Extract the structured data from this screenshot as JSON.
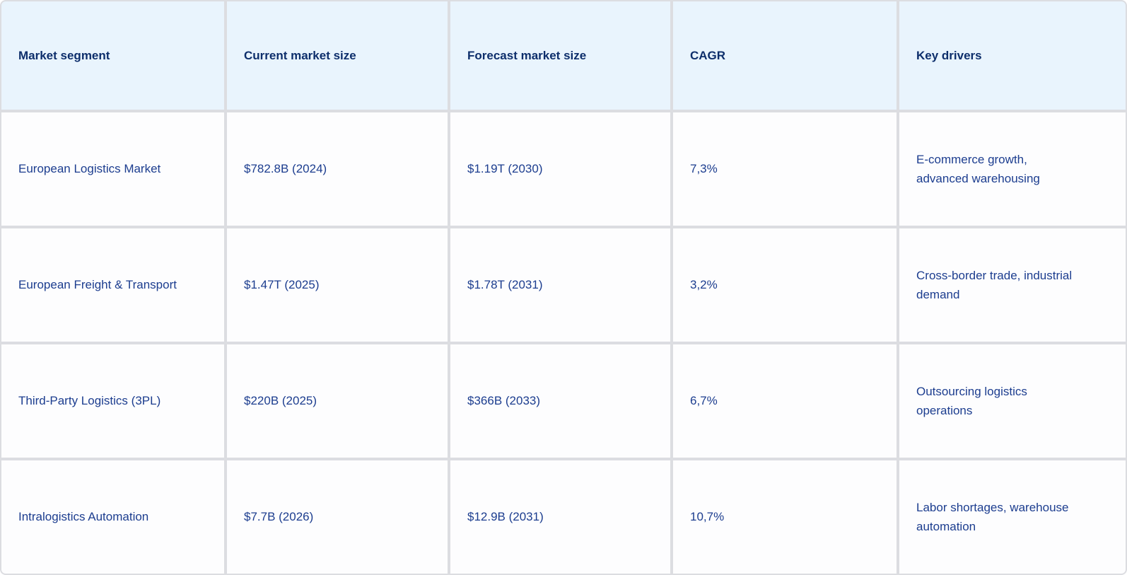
{
  "table": {
    "columns": {
      "segment": "Market segment",
      "current": "Current market size",
      "forecast": "Forecast market size",
      "cagr": "CAGR",
      "drivers": "Key drivers"
    },
    "rows": [
      {
        "segment": "European Logistics Market",
        "current": "$782.8B (2024)",
        "forecast": "$1.19T (2030)",
        "cagr": "7,3%",
        "drivers": "E-commerce growth, advanced warehousing"
      },
      {
        "segment": "European Freight & Transport",
        "current": "$1.47T (2025)",
        "forecast": "$1.78T (2031)",
        "cagr": "3,2%",
        "drivers": "Cross-border trade, industrial demand"
      },
      {
        "segment": "Third-Party Logistics (3PL)",
        "current": "$220B (2025)",
        "forecast": "$366B (2033)",
        "cagr": "6,7%",
        "drivers": "Outsourcing logistics operations"
      },
      {
        "segment": "Intralogistics Automation",
        "current": "$7.7B (2026)",
        "forecast": "$12.9B (2031)",
        "cagr": "10,7%",
        "drivers": "Labor shortages, warehouse automation"
      }
    ],
    "colors": {
      "header_background": "#e9f4fd",
      "cell_background": "#fdfdfe",
      "grid_line": "#dcdde1",
      "header_text": "#0d2e6b",
      "body_text": "#1c3d8f"
    }
  },
  "chart_data": {
    "type": "table",
    "title": "",
    "columns": [
      "Market segment",
      "Current market size",
      "Forecast market size",
      "CAGR",
      "Key drivers"
    ],
    "rows": [
      [
        "European Logistics Market",
        "$782.8B (2024)",
        "$1.19T (2030)",
        "7,3%",
        "E-commerce growth, advanced warehousing"
      ],
      [
        "European Freight & Transport",
        "$1.47T (2025)",
        "$1.78T (2031)",
        "3,2%",
        "Cross-border trade, industrial demand"
      ],
      [
        "Third-Party Logistics (3PL)",
        "$220B (2025)",
        "$366B (2033)",
        "6,7%",
        "Outsourcing logistics operations"
      ],
      [
        "Intralogistics Automation",
        "$7.7B (2026)",
        "$12.9B (2031)",
        "10,7%",
        "Labor shortages, warehouse automation"
      ]
    ],
    "numeric_values": {
      "current_market_size_usd_b": [
        782.8,
        1470,
        220,
        7.7
      ],
      "current_market_size_year": [
        2024,
        2025,
        2025,
        2026
      ],
      "forecast_market_size_usd_b": [
        1190,
        1780,
        366,
        12.9
      ],
      "forecast_market_size_year": [
        2030,
        2031,
        2033,
        2031
      ],
      "cagr_percent": [
        7.3,
        3.2,
        6.7,
        10.7
      ]
    }
  }
}
